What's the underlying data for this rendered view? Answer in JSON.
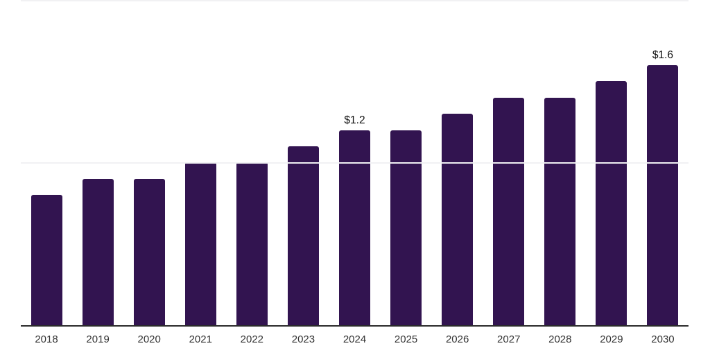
{
  "chart_data": {
    "type": "bar",
    "title": "",
    "xlabel": "",
    "ylabel": "",
    "categories": [
      "2018",
      "2019",
      "2020",
      "2021",
      "2022",
      "2023",
      "2024",
      "2025",
      "2026",
      "2027",
      "2028",
      "2029",
      "2030"
    ],
    "values": [
      0.8,
      0.9,
      0.9,
      1.0,
      1.0,
      1.1,
      1.2,
      1.2,
      1.3,
      1.4,
      1.4,
      1.5,
      1.6
    ],
    "point_labels": [
      "",
      "",
      "",
      "",
      "",
      "",
      "$1.2",
      "",
      "",
      "",
      "",
      "",
      "$1.6"
    ],
    "ylim": [
      0,
      2
    ],
    "gridline_values": [
      1,
      2
    ],
    "grid": "horizontal light gridlines, no y-axis tick labels",
    "legend": "none",
    "colors": {
      "bar": "#321450",
      "axis_line": "#2b2b2b",
      "gridline": "#f1f1f3",
      "data_label": "#111111",
      "tick_label": "#333333",
      "background": "#ffffff"
    }
  }
}
